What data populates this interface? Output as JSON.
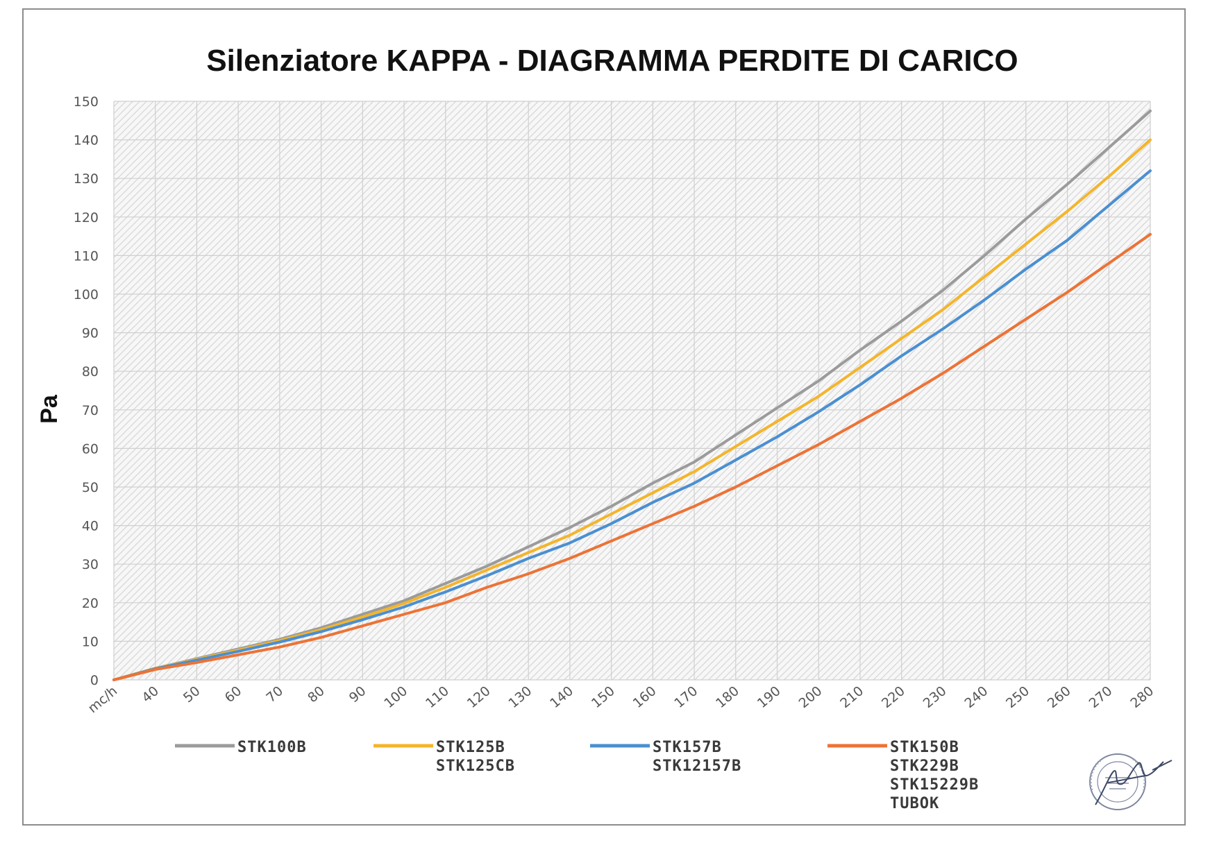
{
  "colors": {
    "STK100B": "#9b9b9b",
    "STK125B": "#f4b52c",
    "STK157B": "#4a8fd1",
    "STK150B": "#ec7336",
    "grid": "#cfcfcf",
    "hatch": "#d6d6d6",
    "frame": "#8c8c8c"
  },
  "chart_data": {
    "type": "line",
    "title": "Silenziatore KAPPA - DIAGRAMMA PERDITE DI CARICO",
    "ylabel": "Pa",
    "xlabel": "",
    "categories": [
      "mc/h",
      "40",
      "50",
      "60",
      "70",
      "80",
      "90",
      "100",
      "110",
      "120",
      "130",
      "140",
      "150",
      "160",
      "170",
      "180",
      "190",
      "200",
      "210",
      "220",
      "230",
      "240",
      "250",
      "260",
      "270",
      "280"
    ],
    "ylim": [
      0,
      150
    ],
    "yticks": [
      "0",
      "10",
      "20",
      "30",
      "40",
      "50",
      "60",
      "70",
      "80",
      "90",
      "100",
      "110",
      "120",
      "130",
      "140",
      "150"
    ],
    "grid": true,
    "legend_position": "bottom",
    "series": [
      {
        "name": "STK100B",
        "legend_lines": [
          "STK100B"
        ],
        "color_key": "STK100B",
        "values": [
          0,
          3,
          5.5,
          8,
          10.5,
          13.5,
          17,
          20.5,
          25,
          29.5,
          34.5,
          39.5,
          45,
          51,
          56.5,
          63.5,
          70.5,
          77.5,
          85.5,
          93,
          101,
          110,
          119.5,
          128.5,
          138,
          147.5
        ]
      },
      {
        "name": "STK125B / STK125CB",
        "legend_lines": [
          "STK125B",
          "STK125CB"
        ],
        "color_key": "STK125B",
        "values": [
          0,
          3,
          5.3,
          7.7,
          10.2,
          13,
          16.3,
          19.8,
          24,
          28.5,
          33,
          37.5,
          43,
          48.5,
          54,
          60.5,
          67,
          73.5,
          81,
          88.5,
          96,
          104.5,
          113,
          121.5,
          130.5,
          140
        ]
      },
      {
        "name": "STK157B / STK12157B",
        "legend_lines": [
          "STK157B",
          "STK12157B"
        ],
        "color_key": "STK157B",
        "values": [
          0,
          2.9,
          5.1,
          7.4,
          9.8,
          12.5,
          15.6,
          18.9,
          22.8,
          27,
          31.5,
          35.5,
          40.5,
          46,
          51,
          57,
          63,
          69.5,
          76.5,
          84,
          91,
          98.5,
          106.5,
          114,
          123,
          132
        ]
      },
      {
        "name": "STK150B / STK229B / STK15229B / TUBOK",
        "legend_lines": [
          "STK150B",
          "STK229B",
          "STK15229B",
          "TUBOK"
        ],
        "color_key": "STK150B",
        "values": [
          0,
          2.7,
          4.5,
          6.5,
          8.5,
          11,
          14,
          17,
          20,
          24,
          27.5,
          31.5,
          36,
          40.5,
          45,
          50,
          55.5,
          61,
          67,
          73,
          79.5,
          86.5,
          93.5,
          100.5,
          108,
          115.5
        ]
      }
    ]
  }
}
